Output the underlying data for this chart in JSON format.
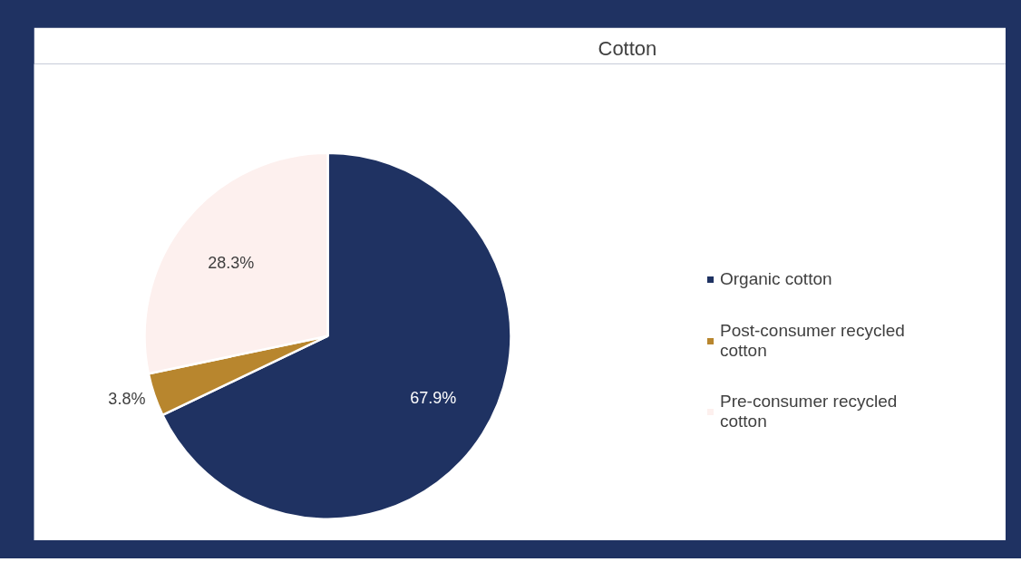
{
  "chart_data": {
    "type": "pie",
    "title": "Cotton",
    "categories": [
      "Organic cotton",
      "Post-consumer recycled cotton",
      "Pre-consumer recycled cotton"
    ],
    "values": [
      67.9,
      3.8,
      28.3
    ],
    "colors": [
      "#1f3262",
      "#b8862e",
      "#fdf0ee"
    ],
    "value_labels": [
      "67.9%",
      "3.8%",
      "28.3%"
    ],
    "legend": "right"
  }
}
